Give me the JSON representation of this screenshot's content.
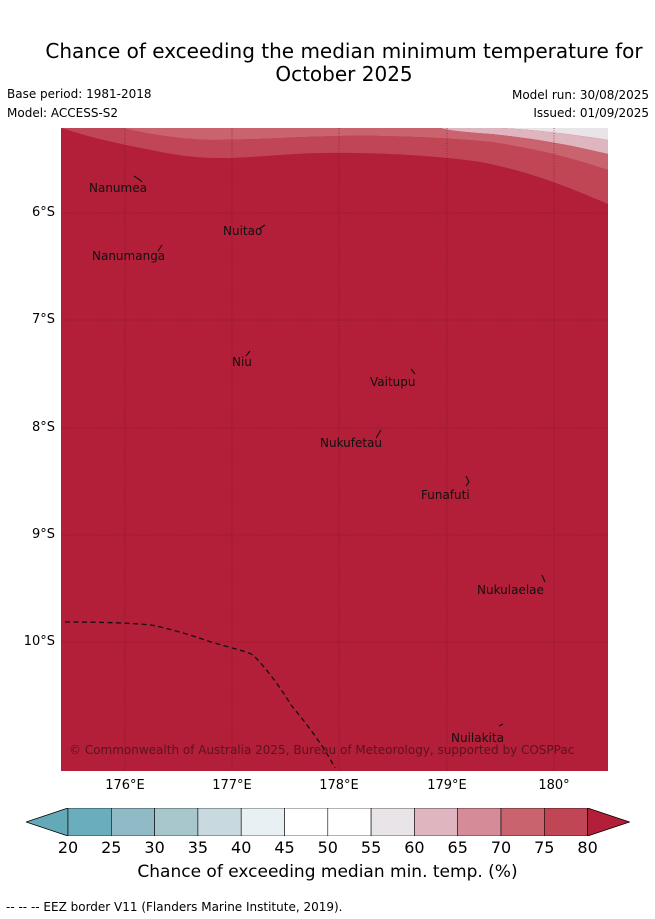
{
  "title_line1": "Chance of exceeding the median minimum temperature for",
  "title_line2": "October 2025",
  "base_period": "Base period: 1981-2018",
  "model": "Model: ACCESS-S2",
  "model_run": "Model run: 30/08/2025",
  "issued": "Issued: 01/09/2025",
  "copyright": "© Commonwealth of Australia 2025, Bureau of Meteorology, supported by COSPPac",
  "places": [
    {
      "name": "Nanumea"
    },
    {
      "name": "Nuitao"
    },
    {
      "name": "Nanumanga"
    },
    {
      "name": "Niu"
    },
    {
      "name": "Vaitupu"
    },
    {
      "name": "Nukufetau"
    },
    {
      "name": "Funafuti"
    },
    {
      "name": "Nukulaelae"
    },
    {
      "name": "Nuilakita"
    }
  ],
  "lat_labels": [
    "6°S",
    "7°S",
    "8°S",
    "9°S",
    "10°S"
  ],
  "lon_labels": [
    "176°E",
    "177°E",
    "178°E",
    "179°E",
    "180°"
  ],
  "colorbar": {
    "title": "Chance of exceeding median min. temp. (%)",
    "ticks": [
      "20",
      "25",
      "30",
      "35",
      "40",
      "45",
      "50",
      "55",
      "60",
      "65",
      "70",
      "75",
      "80"
    ],
    "colors": [
      "#63a9b8",
      "#6aaebd",
      "#8fbac6",
      "#a8c7cd",
      "#c8dadf",
      "#e9f0f3",
      "#ffffff",
      "#ffffff",
      "#e8e4e7",
      "#dfb5bf",
      "#d58c98",
      "#c9636e",
      "#c04656",
      "#b31e38"
    ]
  },
  "legend_note": "--  --  -- EEZ border V11 (Flanders Marine Institute, 2019)."
}
